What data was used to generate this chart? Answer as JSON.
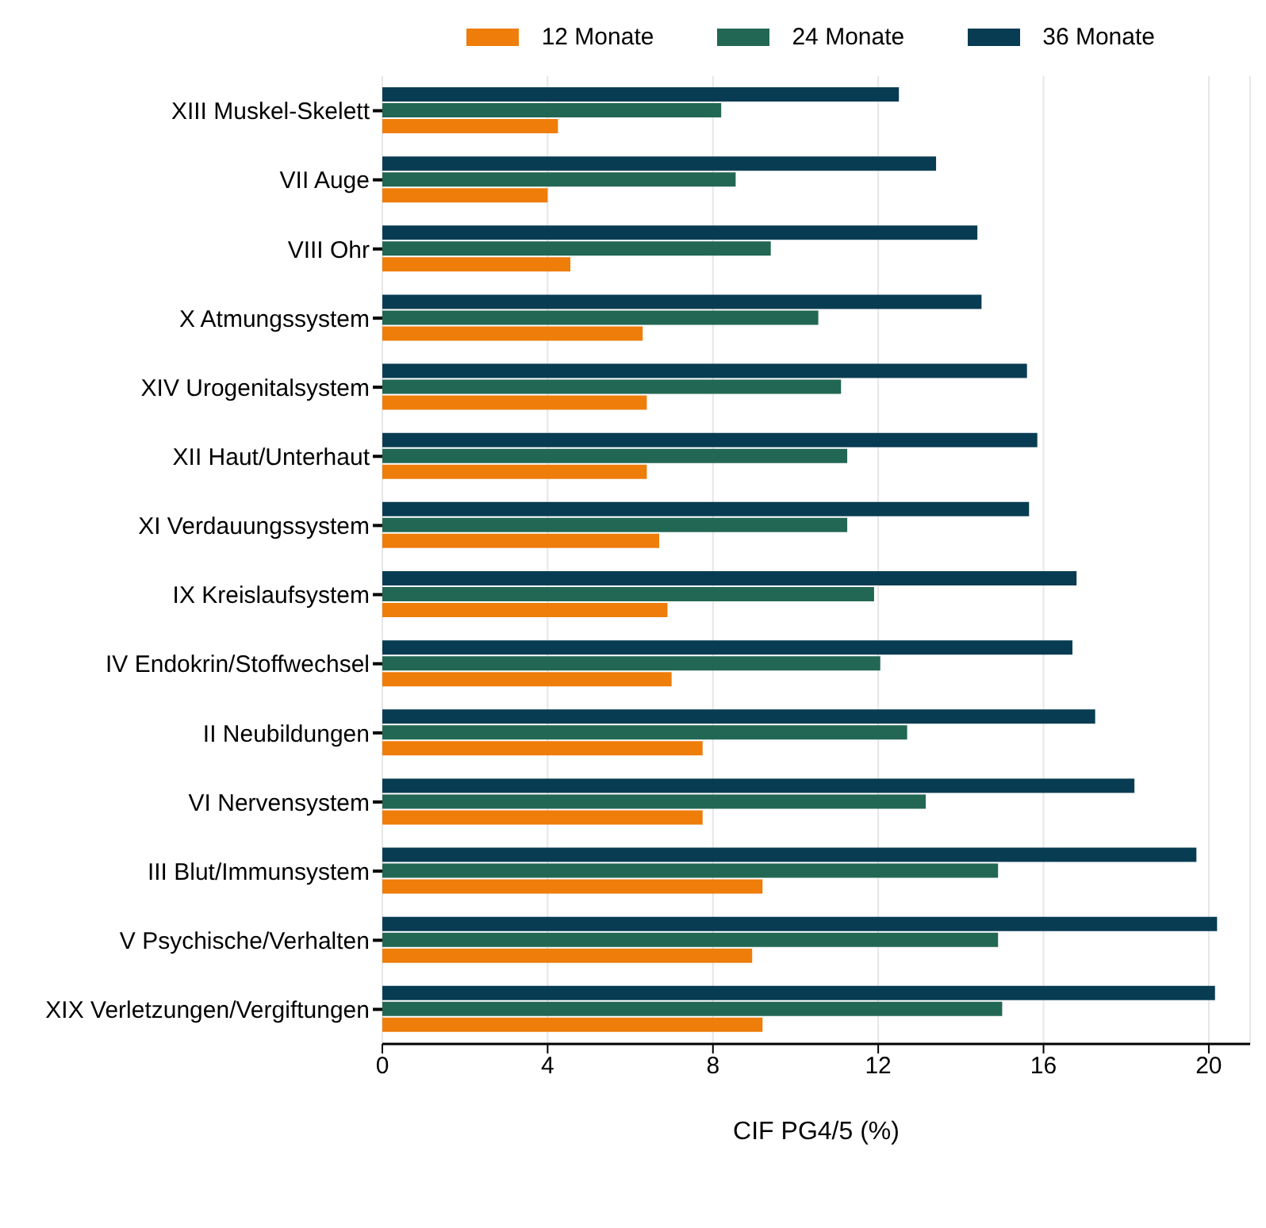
{
  "chart_data": {
    "type": "bar",
    "orientation": "horizontal",
    "xlabel": "CIF PG4/5 (%)",
    "categories": [
      "XIII Muskel-Skelett",
      "VII Auge",
      "VIII Ohr",
      "X Atmungssystem",
      "XIV Urogenitalsystem",
      "XII Haut/Unterhaut",
      "XI Verdauungssystem",
      "IX Kreislaufsystem",
      "IV Endokrin/Stoffwechsel",
      "II Neubildungen",
      "VI Nervensystem",
      "III Blut/Immunsystem",
      "V Psychische/Verhalten",
      "XIX Verletzungen/Vergiftungen"
    ],
    "series": [
      {
        "name": "12 Monate",
        "color": "#ee7d0a",
        "values": [
          4.25,
          4.0,
          4.55,
          6.3,
          6.4,
          6.4,
          6.7,
          6.9,
          7.0,
          7.75,
          7.75,
          9.2,
          8.95,
          9.2
        ]
      },
      {
        "name": "24 Monate",
        "color": "#226753",
        "values": [
          8.2,
          8.55,
          9.4,
          10.55,
          11.1,
          11.25,
          11.25,
          11.9,
          12.05,
          12.7,
          13.15,
          14.9,
          14.9,
          15.0
        ]
      },
      {
        "name": "36 Monate",
        "color": "#083c52",
        "values": [
          12.5,
          13.4,
          14.4,
          14.5,
          15.6,
          15.85,
          15.65,
          16.8,
          16.7,
          17.25,
          18.2,
          19.7,
          20.2,
          20.15
        ]
      }
    ],
    "xlim": [
      0,
      21
    ],
    "xticks": [
      0,
      4,
      8,
      12,
      16,
      20
    ],
    "grid": "x",
    "legend": "top right"
  }
}
